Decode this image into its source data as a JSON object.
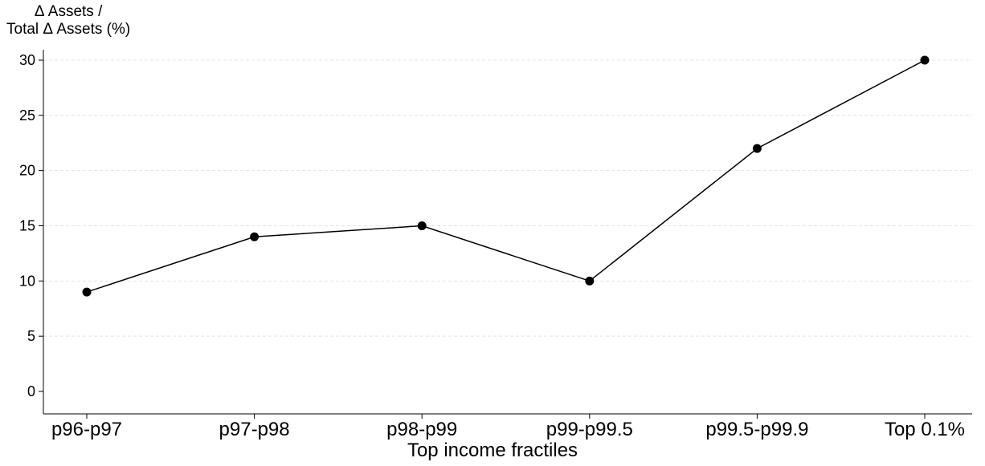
{
  "chart_data": {
    "type": "line",
    "categories": [
      "p96-p97",
      "p97-p98",
      "p98-p99",
      "p99-p99.5",
      "p99.5-p99.9",
      "Top 0.1%"
    ],
    "values": [
      9,
      14,
      15,
      10,
      22,
      30
    ],
    "ylabel_line1": "Δ Assets /",
    "ylabel_line2": "Total Δ Assets (%)",
    "xlabel": "Top income fractiles",
    "ylim": [
      0,
      30
    ],
    "yticks": [
      0,
      5,
      10,
      15,
      20,
      25,
      30
    ],
    "grid": true
  }
}
